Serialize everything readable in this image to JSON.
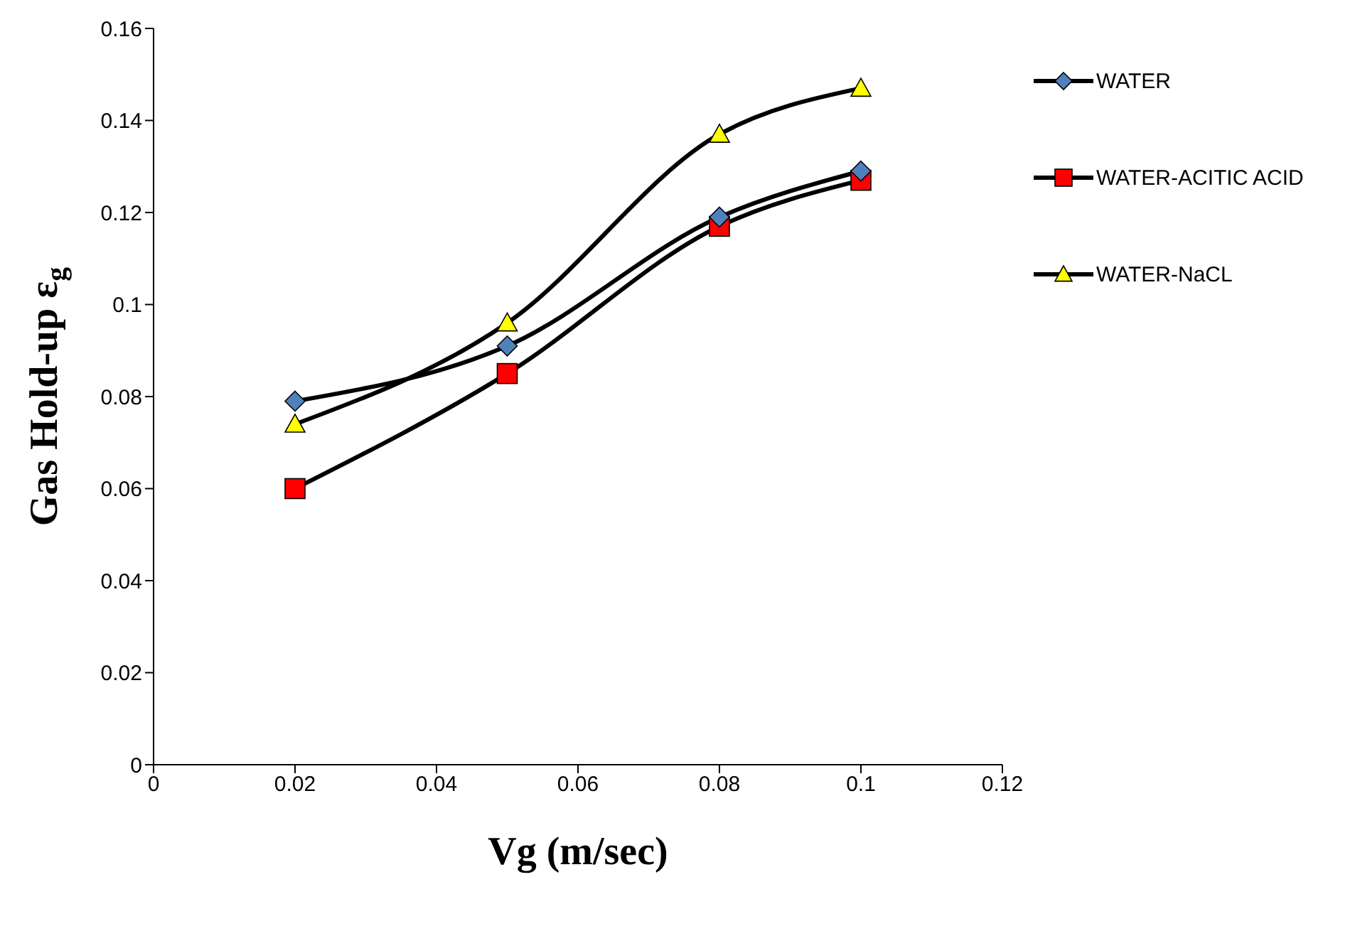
{
  "chart_data": {
    "type": "line",
    "xlabel": "Vg (m/sec)",
    "ylabel": "Gas Hold-up ε$_{g}$",
    "x": [
      0.02,
      0.05,
      0.08,
      0.1
    ],
    "series": [
      {
        "name": "WATER",
        "color": "#4f81bd",
        "marker": "diamond",
        "values": [
          0.079,
          0.091,
          0.119,
          0.129
        ]
      },
      {
        "name": "WATER-ACITIC ACID",
        "color": "#ff0000",
        "marker": "square",
        "values": [
          0.06,
          0.085,
          0.117,
          0.127
        ]
      },
      {
        "name": "WATER-NaCL",
        "color": "#ffff00",
        "marker": "triangle",
        "values": [
          0.074,
          0.096,
          0.137,
          0.147
        ]
      }
    ],
    "xlim": [
      0,
      0.12
    ],
    "xticks": [
      0,
      0.02,
      0.04,
      0.06,
      0.08,
      0.1,
      0.12
    ],
    "ylim": [
      0,
      0.16
    ],
    "yticks": [
      0,
      0.02,
      0.04,
      0.06,
      0.08,
      0.1,
      0.12,
      0.14,
      0.16
    ],
    "grid": false,
    "legend": "right",
    "line_style": "solid"
  }
}
